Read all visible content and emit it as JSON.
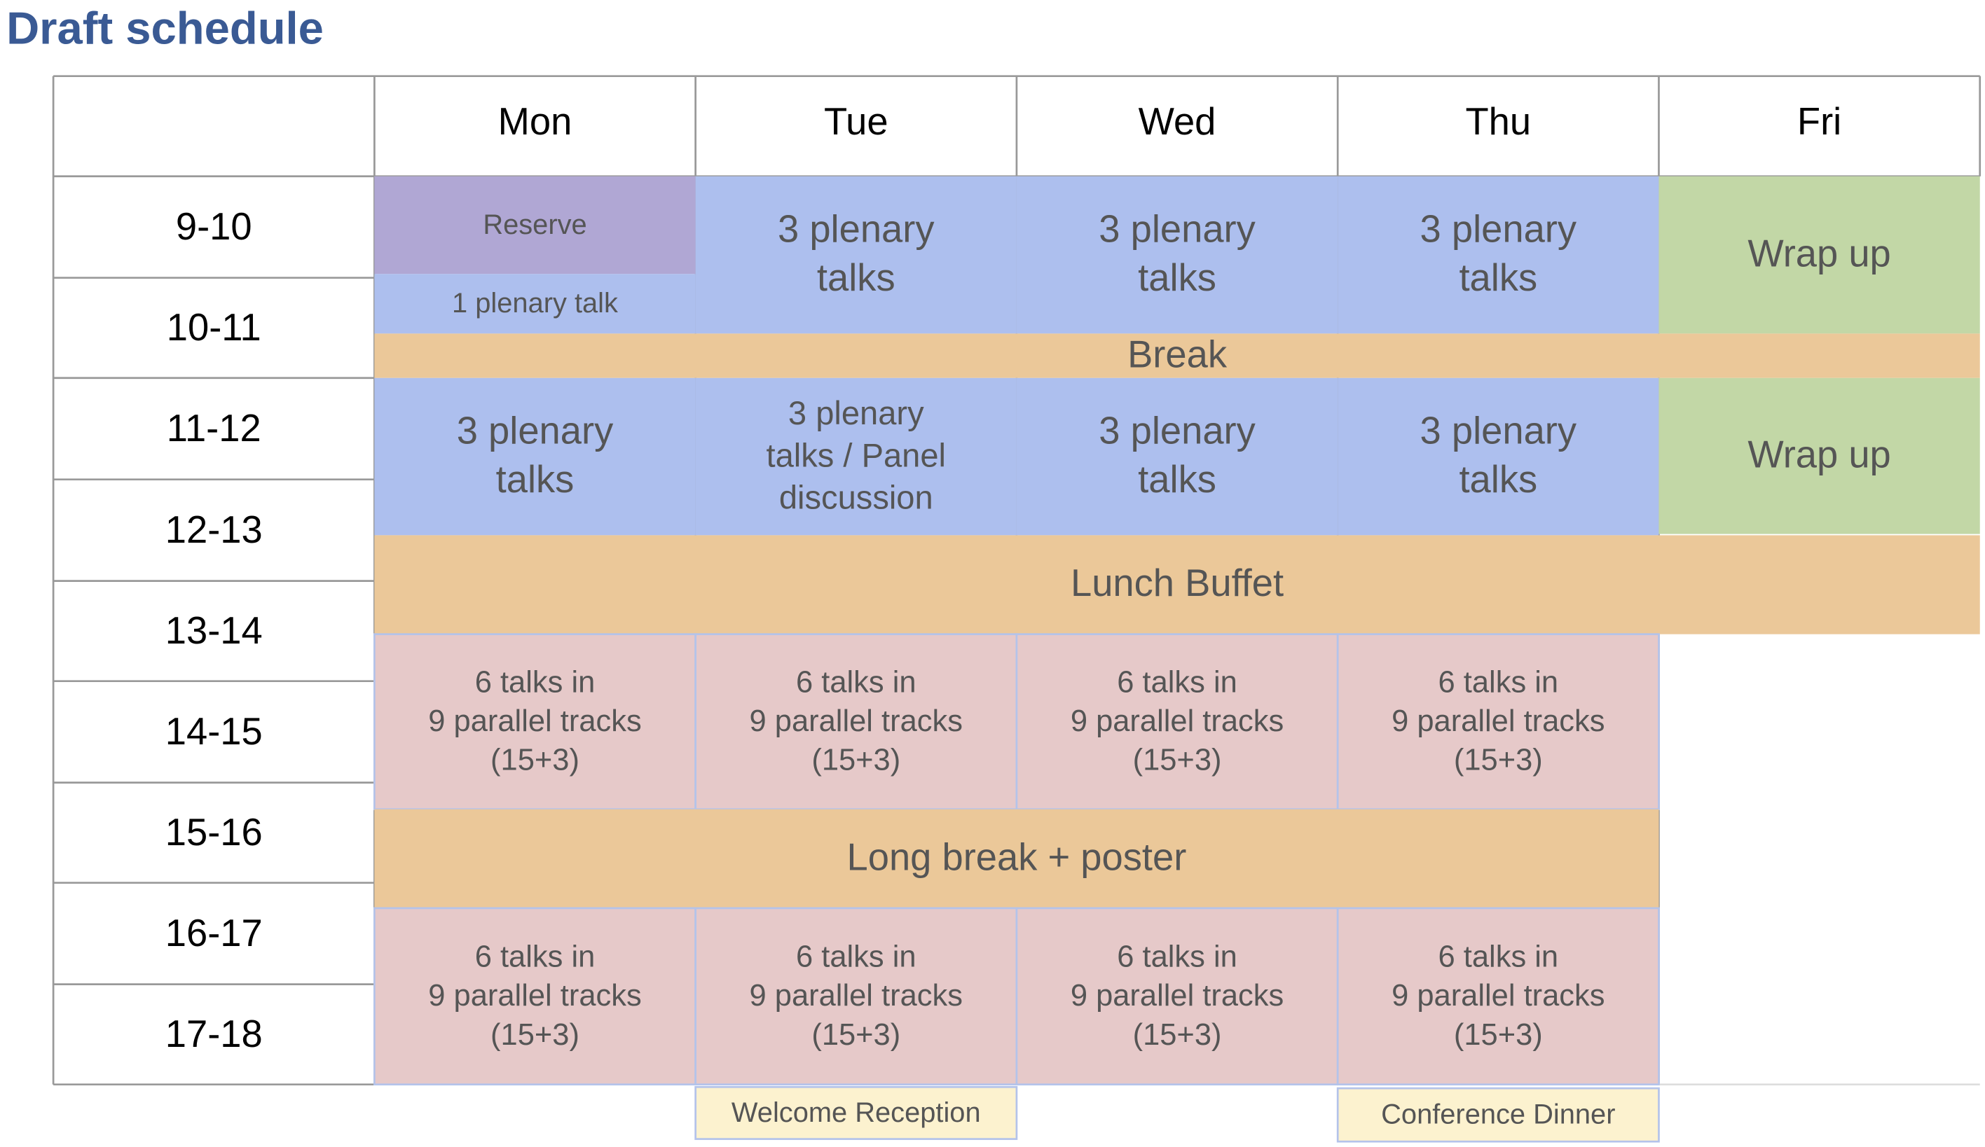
{
  "header": {
    "title": "Draft schedule"
  },
  "table": {
    "columns": [
      "Mon",
      "Tue",
      "Wed",
      "Thu",
      "Fri"
    ],
    "times": [
      "9-10",
      "10-11",
      "11-12",
      "12-13",
      "13-14",
      "14-15",
      "15-16",
      "16-17",
      "17-18"
    ],
    "events": [
      {
        "lines": [
          "Reserve"
        ]
      },
      {
        "lines": [
          "1 plenary talk"
        ]
      },
      {
        "lines": [
          "3 plenary",
          "talks"
        ]
      },
      {
        "lines": [
          "3 plenary",
          "talks"
        ]
      },
      {
        "lines": [
          "3 plenary",
          "talks"
        ]
      },
      {
        "lines": [
          "Wrap up"
        ]
      },
      {
        "lines": [
          "Break"
        ]
      },
      {
        "lines": [
          "3 plenary",
          "talks"
        ]
      },
      {
        "lines": [
          "3 plenary",
          "talks / Panel",
          "discussion"
        ]
      },
      {
        "lines": [
          "3 plenary",
          "talks"
        ]
      },
      {
        "lines": [
          "3 plenary",
          "talks"
        ]
      },
      {
        "lines": [
          "Wrap up"
        ]
      },
      {
        "lines": [
          "Lunch Buffet"
        ]
      },
      {
        "lines": [
          "6 talks in",
          "9 parallel tracks",
          "(15+3)"
        ]
      },
      {
        "lines": [
          "6 talks in",
          "9 parallel tracks",
          "(15+3)"
        ]
      },
      {
        "lines": [
          "6 talks in",
          "9 parallel tracks",
          "(15+3)"
        ]
      },
      {
        "lines": [
          "6 talks in",
          "9 parallel tracks",
          "(15+3)"
        ]
      },
      {
        "lines": [
          "Long break + poster"
        ]
      },
      {
        "lines": [
          "6 talks in",
          "9 parallel tracks",
          "(15+3)"
        ]
      },
      {
        "lines": [
          "6 talks in",
          "9 parallel tracks",
          "(15+3)"
        ]
      },
      {
        "lines": [
          "6 talks in",
          "9 parallel tracks",
          "(15+3)"
        ]
      },
      {
        "lines": [
          "6 talks in",
          "9 parallel tracks",
          "(15+3)"
        ]
      },
      {
        "lines": [
          "Welcome Reception"
        ]
      },
      {
        "lines": [
          "Conference Dinner"
        ]
      }
    ]
  }
}
